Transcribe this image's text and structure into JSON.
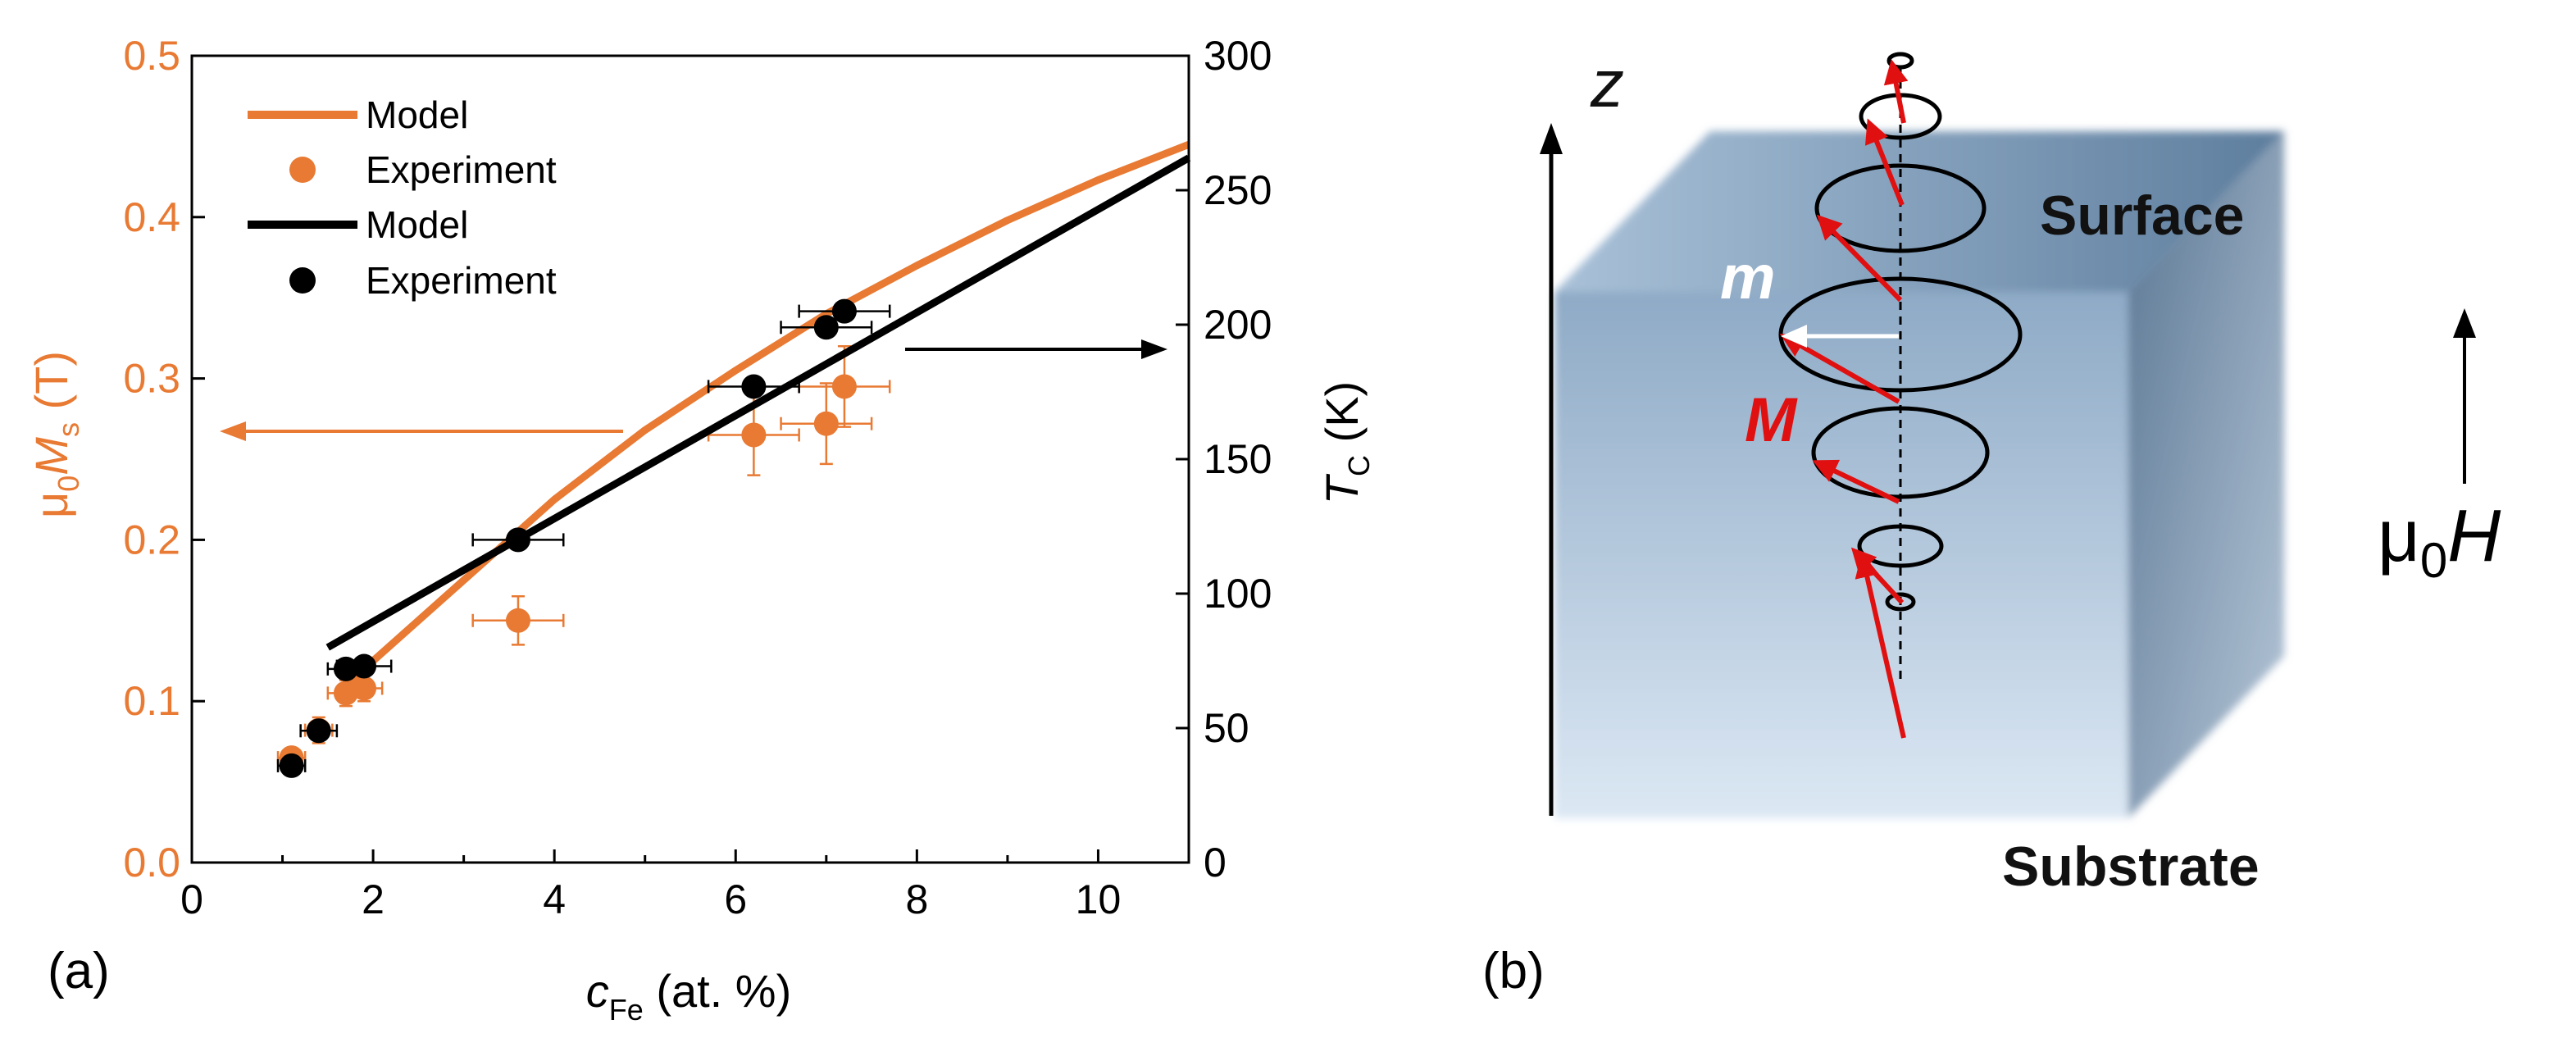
{
  "panel_a": {
    "label": "(a)",
    "xlabel_main": "c",
    "xlabel_sub": "Fe",
    "xlabel_rest": " (at. %)",
    "ylabel_left": {
      "p1": "μ",
      "s1": "0",
      "p2": "M",
      "s2": "s",
      "p3": " (T)"
    },
    "ylabel_right": {
      "p1": "T",
      "s1": "C",
      "p2": " (K)"
    },
    "legend": [
      "Model",
      "Experiment",
      "Model",
      "Experiment"
    ]
  },
  "panel_b": {
    "label": "(b)",
    "axis": "z",
    "surface": "Surface",
    "substrate": "Substrate",
    "m": "m",
    "M": "M",
    "field": {
      "p1": "μ",
      "s1": "0",
      "p2": "H"
    }
  },
  "colors": {
    "orange": "#E87A33",
    "black": "#000000",
    "red": "#E01010"
  },
  "chart_data": {
    "type": "scatter",
    "xlim": [
      0,
      11
    ],
    "ylim_left": [
      0,
      0.5
    ],
    "ylim_right": [
      0,
      300
    ],
    "x_ticks": [
      0,
      2,
      4,
      6,
      8,
      10
    ],
    "x_tick_labels": [
      "0",
      "2",
      "4",
      "6",
      "8",
      "10"
    ],
    "y_left_ticks": [
      0,
      0.1,
      0.2,
      0.3,
      0.4,
      0.5
    ],
    "y_left_tick_labels": [
      "0.0",
      "0.1",
      "0.2",
      "0.3",
      "0.4",
      "0.5"
    ],
    "y_right_ticks": [
      0,
      50,
      100,
      150,
      200,
      250,
      300
    ],
    "y_right_tick_labels": [
      "0",
      "50",
      "100",
      "150",
      "200",
      "250",
      "300"
    ],
    "grid": false,
    "legend_position": "top-left",
    "series": [
      {
        "name": "Model",
        "kind": "line",
        "axis": "left",
        "color": "#E87A33",
        "x": [
          1.6,
          2.0,
          3.0,
          4.0,
          5.0,
          6.0,
          7.0,
          8.0,
          9.0,
          10.0,
          11.0
        ],
        "y": [
          0.105,
          0.125,
          0.175,
          0.225,
          0.268,
          0.305,
          0.34,
          0.37,
          0.398,
          0.423,
          0.445
        ]
      },
      {
        "name": "Experiment",
        "kind": "points",
        "axis": "left",
        "color": "#E87A33",
        "x": [
          1.1,
          1.4,
          1.7,
          1.9,
          3.6,
          6.2,
          7.0,
          7.2
        ],
        "y": [
          0.065,
          0.082,
          0.105,
          0.108,
          0.15,
          0.265,
          0.272,
          0.295
        ],
        "xerr": [
          0.15,
          0.15,
          0.2,
          0.2,
          0.5,
          0.5,
          0.5,
          0.5
        ],
        "yerr": [
          0.005,
          0.008,
          0.008,
          0.008,
          0.015,
          0.025,
          0.025,
          0.025
        ]
      },
      {
        "name": "Model",
        "kind": "line",
        "axis": "right",
        "color": "#000000",
        "x": [
          1.5,
          11.0
        ],
        "y": [
          80,
          262
        ]
      },
      {
        "name": "Experiment",
        "kind": "points",
        "axis": "right",
        "color": "#000000",
        "x": [
          1.1,
          1.4,
          1.7,
          1.9,
          3.6,
          6.2,
          7.0,
          7.2
        ],
        "y": [
          36,
          49,
          72,
          73,
          120,
          177,
          199,
          205
        ],
        "xerr": [
          0.15,
          0.2,
          0.2,
          0.3,
          0.5,
          0.5,
          0.5,
          0.5
        ],
        "yerr": [
          2,
          3,
          3,
          3,
          3,
          3,
          3,
          3
        ]
      }
    ]
  }
}
